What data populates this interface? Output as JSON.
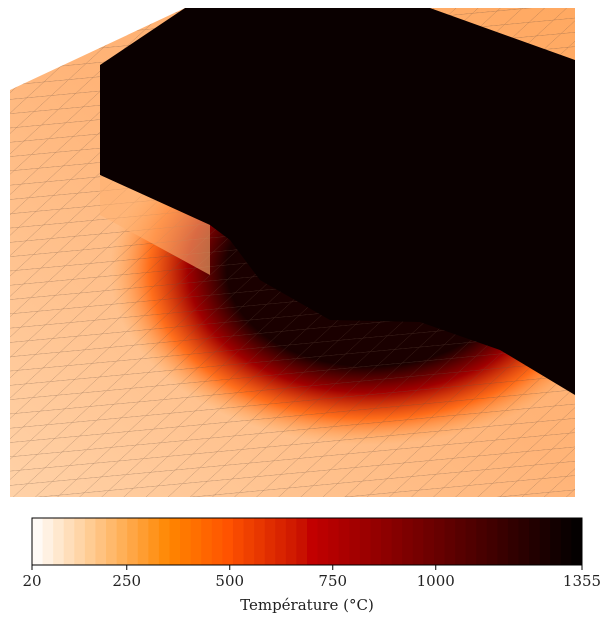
{
  "colorbar": {
    "label": "Température (°C)",
    "lim": [
      20,
      1355
    ],
    "ticks": [
      20,
      250,
      500,
      750,
      1000,
      1355
    ]
  }
}
